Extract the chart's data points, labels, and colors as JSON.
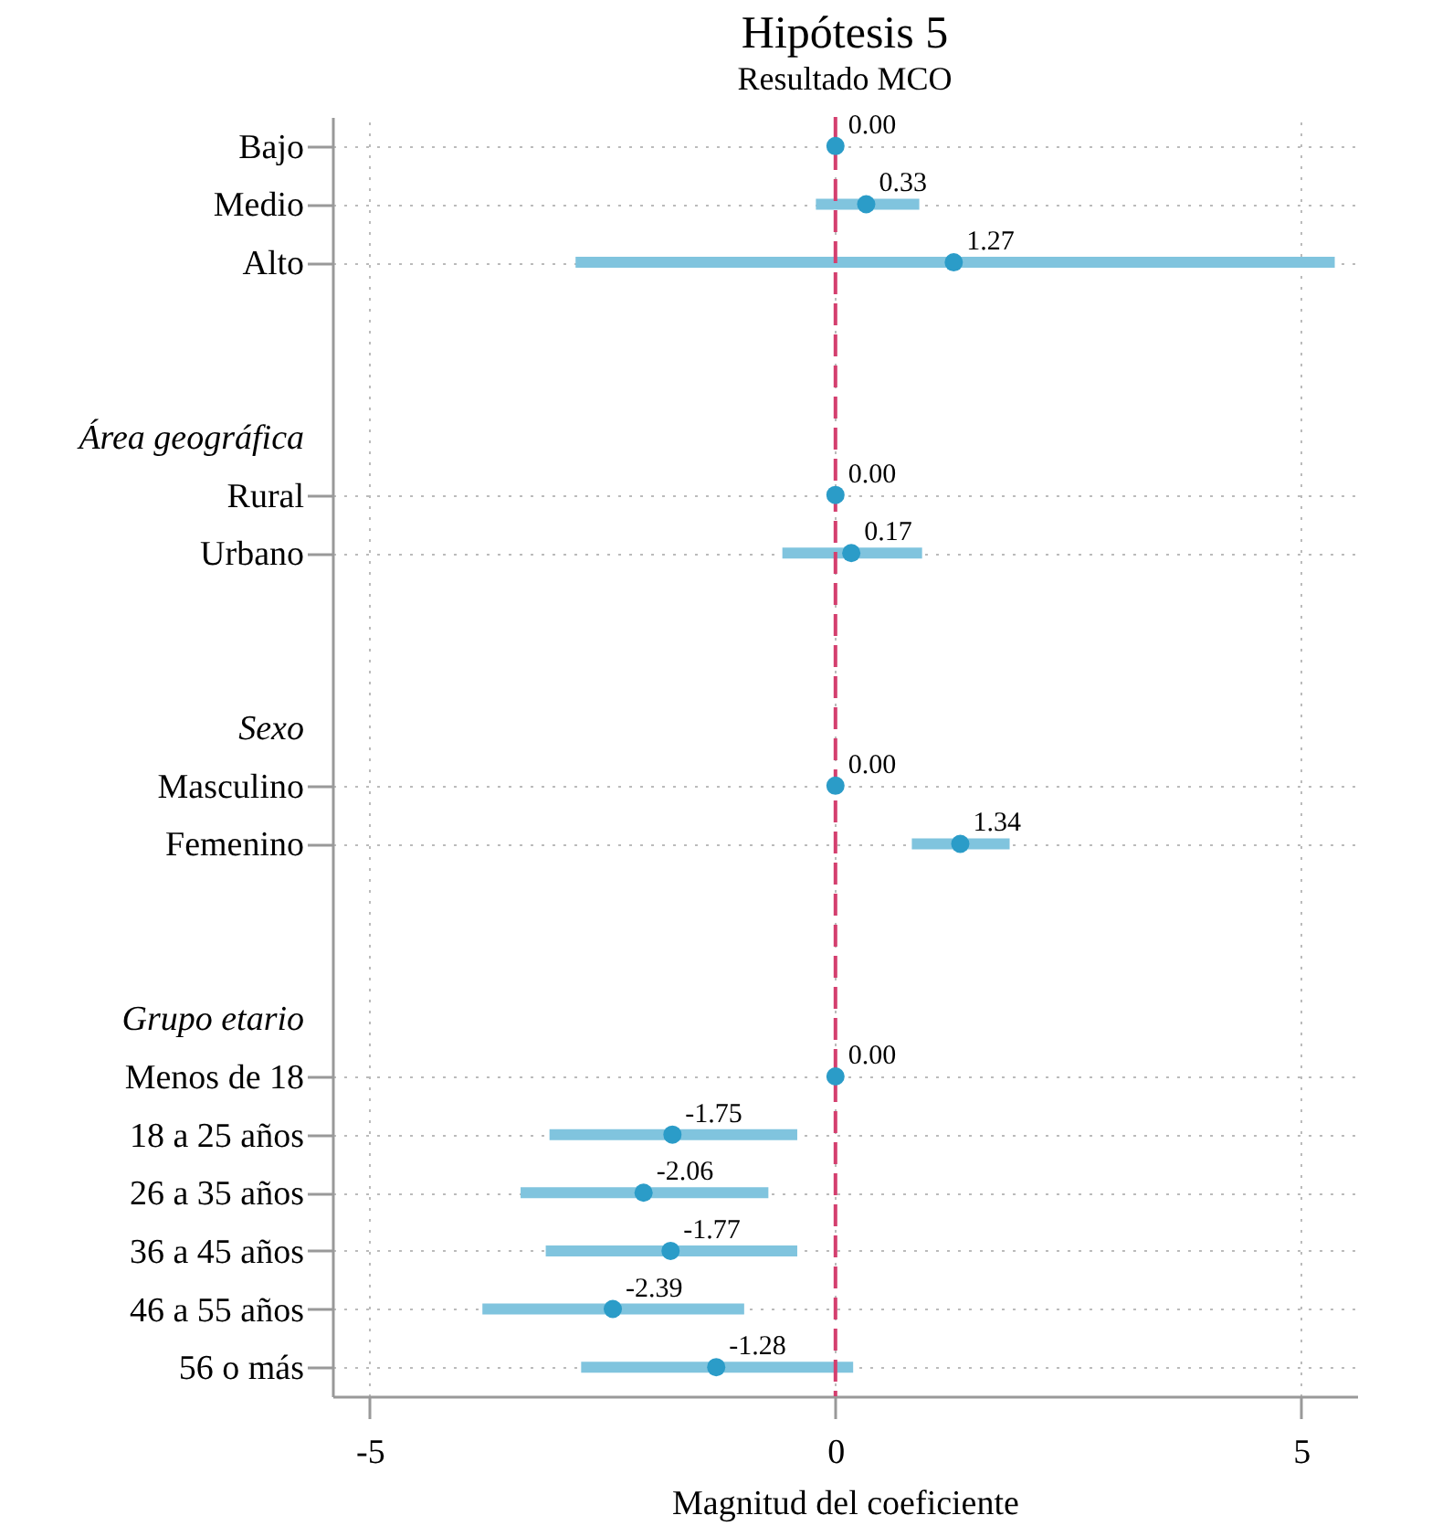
{
  "chart_data": {
    "type": "scatter",
    "title": "Hipótesis 5",
    "subtitle": "Resultado MCO",
    "xlabel": "Magnitud del coeficiente",
    "orientation": "horizontal",
    "categories": [
      "Bajo",
      "Medio",
      "Alto",
      null,
      null,
      "Área geográfica",
      "Rural",
      "Urbano",
      null,
      null,
      "Sexo",
      "Masculino",
      "Femenino",
      null,
      null,
      "Grupo etario",
      "Menos de 18",
      "18 a 25 años",
      "26 a 35 años",
      "36 a 45 años",
      "46 a 55 años",
      "56 o más"
    ],
    "values": [
      0,
      0.33,
      1.27,
      null,
      null,
      null,
      0,
      0.17,
      null,
      null,
      null,
      0,
      1.34,
      null,
      null,
      null,
      0,
      -1.75,
      -2.06,
      -1.77,
      -2.39,
      -1.28
    ],
    "errors": [
      null,
      [
        -0.21,
        0.9
      ],
      [
        -2.79,
        5.36
      ],
      null,
      null,
      null,
      null,
      [
        -0.57,
        0.93
      ],
      null,
      null,
      null,
      null,
      [
        0.82,
        1.87
      ],
      null,
      null,
      null,
      null,
      [
        -3.07,
        -0.41
      ],
      [
        -3.38,
        -0.72
      ],
      [
        -3.11,
        -0.41
      ],
      [
        -3.79,
        -0.98
      ],
      [
        -2.73,
        0.19
      ]
    ],
    "value_labels": [
      "0.00",
      "0.33",
      "1.27",
      null,
      null,
      null,
      "0.00",
      "0.17",
      null,
      null,
      null,
      "0.00",
      "1.34",
      null,
      null,
      null,
      "0.00",
      "-1.75",
      "-2.06",
      "-1.77",
      "-2.39",
      "-1.28"
    ],
    "color": "#2b9cc8",
    "marker": "circle",
    "xlim": [
      -5.4,
      5.6
    ],
    "xticks": [
      -5,
      0,
      5
    ],
    "grid": true,
    "ref_lines": [
      {
        "axis": "x",
        "value": 0,
        "color": "#d43f6f",
        "line_style": "dashed"
      }
    ]
  }
}
